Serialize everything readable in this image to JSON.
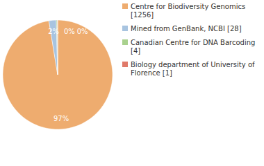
{
  "chart_data": {
    "type": "pie",
    "categories": [
      "Centre for Biodiversity Genomics [1256]",
      "Mined from GenBank, NCBI [28]",
      "Canadian Centre for DNA Barcoding [4]",
      "Biology department of University of Florence [1]"
    ],
    "values": [
      97.44,
      2.17,
      0.31,
      0.08
    ],
    "value_labels": [
      "97%",
      "2%",
      "0%",
      "0%"
    ],
    "colors": [
      "#eeac6f",
      "#a8c4e0",
      "#a9d18e",
      "#e07a6a"
    ],
    "data_labels": true,
    "legend": "upper right"
  }
}
